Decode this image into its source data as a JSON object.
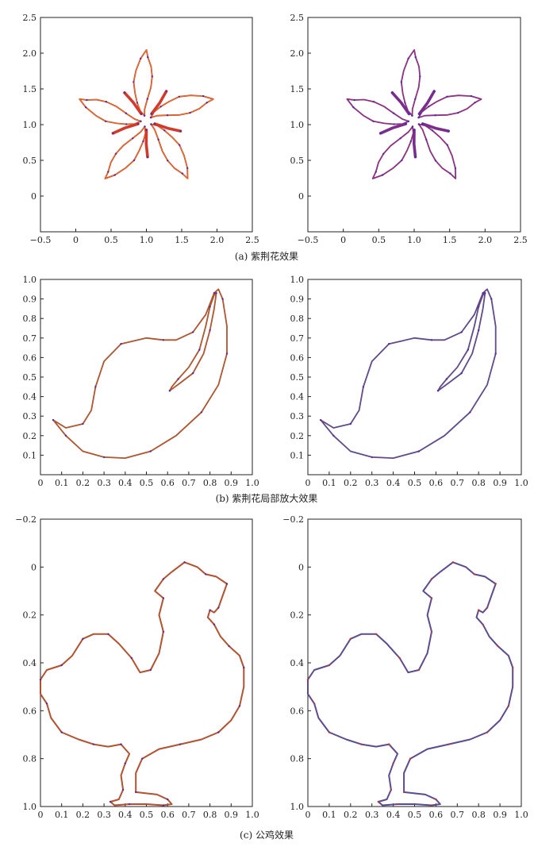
{
  "figure": {
    "captions": {
      "a": "(a) 紫荆花效果",
      "b": "(b) 紫荆花局部放大效果",
      "c": "(c) 公鸡效果"
    }
  },
  "chart_data": [
    {
      "id": "a-left",
      "type": "line",
      "xlim": [
        -0.5,
        2.5
      ],
      "ylim": [
        -0.5,
        2.5
      ],
      "xticks": [
        -0.5,
        0,
        0.5,
        1,
        1.5,
        2,
        2.5
      ],
      "yticks": [
        0,
        0.5,
        1,
        1.5,
        2,
        2.5
      ],
      "xtick_labels": [
        "−0.5",
        "0",
        "0.5",
        "1.0",
        "1.5",
        "2.0",
        "2.5"
      ],
      "ytick_labels": [
        "0",
        "0.5",
        "1.0",
        "1.5",
        "2.0",
        "2.5"
      ],
      "shape": "bauhinia",
      "line_colors": [
        "#d23a2c",
        "#e8c21a"
      ],
      "point_color": "#5a2aa0"
    },
    {
      "id": "a-right",
      "type": "line",
      "xlim": [
        -0.5,
        2.5
      ],
      "ylim": [
        -0.5,
        2.5
      ],
      "xticks": [
        -0.5,
        0,
        0.5,
        1,
        1.5,
        2,
        2.5
      ],
      "yticks": [
        0,
        0.5,
        1,
        1.5,
        2,
        2.5
      ],
      "xtick_labels": [
        "−0.5",
        "0",
        "0.5",
        "1.0",
        "1.5",
        "2.0",
        "2.5"
      ],
      "ytick_labels": [
        "0",
        "0.5",
        "1.0",
        "1.5",
        "2.0",
        "2.5"
      ],
      "shape": "bauhinia",
      "line_colors": [
        "#7b2d8e",
        "#c03a5a"
      ],
      "point_color": "#5a2aa0"
    },
    {
      "id": "b-left",
      "type": "line",
      "xlim": [
        0,
        1
      ],
      "ylim": [
        0,
        1
      ],
      "xticks": [
        0,
        0.1,
        0.2,
        0.3,
        0.4,
        0.5,
        0.6,
        0.7,
        0.8,
        0.9,
        1
      ],
      "yticks": [
        0.1,
        0.2,
        0.3,
        0.4,
        0.5,
        0.6,
        0.7,
        0.8,
        0.9,
        1
      ],
      "xtick_labels": [
        "0",
        "0.1",
        "0.2",
        "0.3",
        "0.4",
        "0.5",
        "0.6",
        "0.7",
        "0.8",
        "0.9",
        "1.0"
      ],
      "ytick_labels": [
        "0.1",
        "0.2",
        "0.3",
        "0.4",
        "0.5",
        "0.6",
        "0.7",
        "0.8",
        "0.9",
        "1.0"
      ],
      "shape": "petal",
      "line_colors": [
        "#d23a2c",
        "#3aa63a"
      ],
      "point_color": "#5a2aa0"
    },
    {
      "id": "b-right",
      "type": "line",
      "xlim": [
        0,
        1
      ],
      "ylim": [
        0,
        1
      ],
      "xticks": [
        0,
        0.1,
        0.2,
        0.3,
        0.4,
        0.5,
        0.6,
        0.7,
        0.8,
        0.9,
        1
      ],
      "yticks": [
        0.1,
        0.2,
        0.3,
        0.4,
        0.5,
        0.6,
        0.7,
        0.8,
        0.9,
        1
      ],
      "xtick_labels": [
        "0",
        "0.1",
        "0.2",
        "0.3",
        "0.4",
        "0.5",
        "0.6",
        "0.7",
        "0.8",
        "0.9",
        "1.0"
      ],
      "ytick_labels": [
        "0.1",
        "0.2",
        "0.3",
        "0.4",
        "0.5",
        "0.6",
        "0.7",
        "0.8",
        "0.9",
        "1.0"
      ],
      "shape": "petal",
      "line_colors": [
        "#3b4fa8",
        "#d23a2c"
      ],
      "point_color": "#5a2aa0"
    },
    {
      "id": "c-left",
      "type": "line",
      "xlim": [
        0,
        1
      ],
      "ylim": [
        -0.2,
        1
      ],
      "y_inverted": true,
      "xticks": [
        0,
        0.1,
        0.2,
        0.3,
        0.4,
        0.5,
        0.6,
        0.7,
        0.8,
        0.9,
        1
      ],
      "yticks": [
        -0.2,
        0,
        0.2,
        0.4,
        0.6,
        0.8,
        1
      ],
      "xtick_labels": [
        "0",
        "0.1",
        "0.2",
        "0.3",
        "0.4",
        "0.5",
        "0.6",
        "0.7",
        "0.8",
        "0.9",
        "1.0"
      ],
      "ytick_labels": [
        "−0.2",
        "0",
        "0.2",
        "0.4",
        "0.6",
        "0.8",
        "1.0"
      ],
      "shape": "rooster",
      "line_colors": [
        "#d23a2c",
        "#3aa63a"
      ],
      "point_color": "#5a2aa0"
    },
    {
      "id": "c-right",
      "type": "line",
      "xlim": [
        0,
        1
      ],
      "ylim": [
        -0.2,
        1
      ],
      "y_inverted": true,
      "xticks": [
        0,
        0.1,
        0.2,
        0.3,
        0.4,
        0.5,
        0.6,
        0.7,
        0.8,
        0.9,
        1
      ],
      "yticks": [
        -0.2,
        0,
        0.2,
        0.4,
        0.6,
        0.8,
        1
      ],
      "xtick_labels": [
        "0",
        "0.1",
        "0.2",
        "0.3",
        "0.4",
        "0.5",
        "0.6",
        "0.7",
        "0.8",
        "0.9",
        "1.0"
      ],
      "ytick_labels": [
        "−0.2",
        "0",
        "0.2",
        "0.4",
        "0.6",
        "0.8",
        "1.0"
      ],
      "shape": "rooster",
      "line_colors": [
        "#3b4fa8",
        "#d23a2c"
      ],
      "point_color": "#c0392b"
    }
  ]
}
